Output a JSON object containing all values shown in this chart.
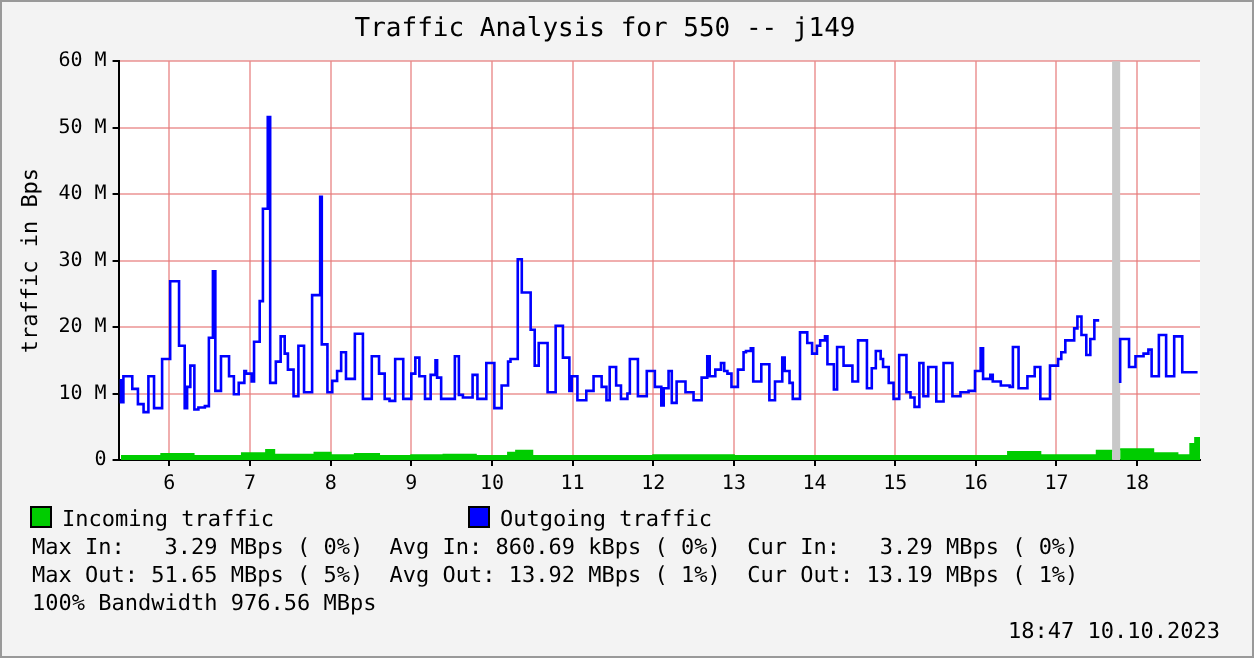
{
  "chart_data": {
    "type": "step",
    "title": "Traffic Analysis for 550 -- j149",
    "ylabel": "traffic in Bps",
    "xlim": [
      5.37,
      18.78
    ],
    "xticks": [
      6,
      7,
      8,
      9,
      10,
      11,
      12,
      13,
      14,
      15,
      16,
      17,
      18
    ],
    "ylim": [
      0,
      60
    ],
    "yticks": [
      0,
      {
        "value": 10,
        "label": "10 M"
      },
      {
        "value": 20,
        "label": "20 M"
      },
      {
        "value": 30,
        "label": "30 M"
      },
      {
        "value": 40,
        "label": "40 M"
      },
      {
        "value": 50,
        "label": "50 M"
      },
      {
        "value": 60,
        "label": "60 M"
      }
    ],
    "grid": true,
    "legend": "bottom",
    "bands": [
      {
        "axis": "x",
        "from": 17.69,
        "to": 17.79,
        "color": "#c8c8c8"
      }
    ],
    "series": [
      {
        "name": "Incoming traffic",
        "type": "area",
        "color": "#00cc00",
        "x": [
          5.4,
          5.9,
          5.9,
          6.3,
          6.3,
          6.9,
          6.9,
          7.2,
          7.2,
          7.3,
          7.3,
          7.8,
          7.8,
          8.0,
          8.0,
          8.3,
          8.3,
          8.6,
          8.6,
          9.0,
          9.0,
          9.4,
          9.4,
          9.8,
          9.8,
          10.2,
          10.2,
          10.3,
          10.3,
          10.5,
          10.5,
          12.0,
          12.0,
          13.0,
          13.0,
          16.4,
          16.4,
          16.8,
          16.8,
          17.5,
          17.5,
          17.69,
          17.74,
          17.79,
          18.2,
          18.2,
          18.5,
          18.5,
          18.66,
          18.66,
          18.72,
          18.72,
          18.78
        ],
        "values": [
          0.6,
          0.6,
          0.9,
          0.9,
          0.6,
          0.6,
          1.0,
          1.0,
          1.5,
          1.5,
          0.8,
          0.8,
          1.1,
          1.1,
          0.7,
          0.7,
          0.9,
          0.9,
          0.6,
          0.6,
          0.7,
          0.7,
          0.8,
          0.8,
          0.6,
          0.6,
          1.1,
          1.1,
          1.4,
          1.4,
          0.6,
          0.6,
          0.7,
          0.7,
          0.6,
          0.6,
          1.2,
          1.2,
          0.7,
          0.7,
          1.4,
          1.4,
          null,
          1.6,
          1.6,
          1.0,
          1.0,
          0.7,
          0.7,
          2.4,
          2.4,
          3.3,
          3.3
        ]
      },
      {
        "name": "Outgoing traffic",
        "type": "step",
        "color": "#0000ff",
        "x": [
          5.4,
          5.43,
          5.54,
          5.61,
          5.68,
          5.74,
          5.81,
          5.91,
          6.01,
          6.12,
          6.19,
          6.22,
          6.26,
          6.31,
          6.36,
          6.44,
          6.49,
          6.54,
          6.57,
          6.64,
          6.74,
          6.8,
          6.86,
          6.93,
          6.95,
          7.02,
          7.05,
          7.12,
          7.16,
          7.22,
          7.25,
          7.32,
          7.38,
          7.43,
          7.47,
          7.54,
          7.6,
          7.67,
          7.77,
          7.87,
          7.89,
          7.96,
          8.02,
          8.08,
          8.13,
          8.19,
          8.3,
          8.4,
          8.51,
          8.6,
          8.67,
          8.73,
          8.8,
          8.9,
          9.0,
          9.05,
          9.1,
          9.17,
          9.24,
          9.3,
          9.32,
          9.37,
          9.54,
          9.59,
          9.64,
          9.76,
          9.82,
          9.93,
          10.03,
          10.12,
          10.2,
          10.23,
          10.32,
          10.37,
          10.48,
          10.53,
          10.58,
          10.69,
          10.79,
          10.88,
          10.96,
          10.99,
          11.06,
          11.17,
          11.26,
          11.36,
          11.42,
          11.46,
          11.54,
          11.6,
          11.68,
          11.71,
          11.81,
          11.92,
          12.02,
          12.1,
          12.13,
          12.19,
          12.23,
          12.29,
          12.4,
          12.5,
          12.6,
          12.67,
          12.7,
          12.77,
          12.84,
          12.88,
          12.92,
          12.97,
          13.05,
          13.12,
          13.15,
          13.21,
          13.24,
          13.34,
          13.44,
          13.51,
          13.6,
          13.63,
          13.69,
          13.73,
          13.82,
          13.91,
          13.97,
          14.03,
          14.07,
          14.13,
          14.16,
          14.24,
          14.28,
          14.36,
          14.47,
          14.54,
          14.65,
          14.71,
          14.76,
          14.82,
          14.85,
          14.92,
          14.98,
          15.05,
          15.14,
          15.19,
          15.24,
          15.3,
          15.35,
          15.41,
          15.51,
          15.6,
          15.71,
          15.81,
          15.91,
          15.99,
          16.06,
          16.09,
          16.18,
          16.21,
          16.31,
          16.42,
          16.46,
          16.53,
          16.64,
          16.73,
          16.8,
          16.92,
          17.02,
          17.06,
          17.11,
          17.22,
          17.26,
          17.31,
          17.37,
          17.42,
          17.47,
          17.53,
          17.69,
          17.79,
          17.9,
          17.98,
          18.08,
          18.14,
          18.18,
          18.27,
          18.36,
          18.46,
          18.56,
          18.66,
          18.75
        ],
        "values": [
          12.2,
          8.7,
          12.6,
          10.7,
          8.4,
          7.2,
          12.6,
          7.8,
          15.2,
          26.9,
          17.2,
          7.8,
          11.0,
          14.2,
          7.6,
          7.9,
          8.1,
          18.4,
          28.4,
          10.4,
          15.6,
          12.6,
          9.9,
          11.6,
          13.4,
          13.0,
          11.8,
          17.8,
          23.9,
          37.8,
          51.6,
          11.6,
          14.8,
          18.6,
          16.0,
          13.6,
          9.6,
          17.2,
          10.2,
          24.8,
          39.6,
          17.4,
          10.2,
          11.9,
          13.4,
          16.2,
          12.2,
          19.0,
          9.2,
          15.6,
          13.0,
          9.2,
          8.9,
          15.2,
          9.2,
          13.0,
          15.4,
          12.6,
          9.2,
          12.8,
          15.0,
          12.4,
          9.2,
          15.6,
          9.8,
          9.4,
          12.8,
          9.2,
          14.6,
          7.8,
          11.2,
          14.8,
          15.2,
          30.2,
          25.2,
          19.6,
          14.2,
          17.6,
          10.2,
          20.2,
          15.4,
          10.4,
          12.6,
          9.0,
          10.4,
          12.6,
          11.0,
          9.0,
          14.0,
          11.2,
          9.2,
          10.0,
          15.2,
          9.6,
          13.4,
          11.0,
          8.2,
          10.8,
          13.4,
          8.6,
          11.8,
          10.2,
          9.0,
          12.4,
          15.6,
          12.6,
          13.6,
          14.6,
          13.4,
          13.0,
          11.0,
          13.6,
          16.2,
          16.4,
          16.8,
          11.8,
          14.4,
          9.0,
          11.8,
          15.4,
          13.4,
          11.6,
          9.2,
          19.2,
          17.6,
          16.0,
          17.2,
          18.0,
          18.6,
          14.4,
          10.6,
          17.0,
          14.2,
          11.8,
          18.0,
          10.8,
          13.8,
          16.4,
          15.2,
          14.0,
          11.6,
          9.2,
          15.8,
          10.2,
          9.4,
          8.0,
          14.6,
          9.6,
          14.0,
          8.8,
          14.6,
          9.6,
          10.2,
          10.4,
          13.4,
          16.8,
          12.2,
          12.8,
          11.8,
          11.2,
          11.0,
          17.0,
          10.8,
          12.6,
          14.0,
          9.2,
          14.2,
          15.2,
          16.2,
          18.0,
          19.8,
          21.6,
          18.8,
          15.8,
          18.2,
          21.0,
          null,
          11.6,
          18.2,
          14.0,
          15.6,
          16.0,
          16.6,
          12.6,
          18.8,
          12.6,
          18.6,
          13.2,
          13.2
        ]
      }
    ],
    "annotations": [
      "Max In:   3.29 MBps ( 0%)  Avg In: 860.69 kBps ( 0%)  Cur In:   3.29 MBps ( 0%)",
      "Max Out: 51.65 MBps ( 5%)  Avg Out: 13.92 MBps ( 1%)  Cur Out: 13.19 MBps ( 1%)",
      "100% Bandwidth 976.56 MBps",
      "18:47 10.10.2023"
    ]
  }
}
